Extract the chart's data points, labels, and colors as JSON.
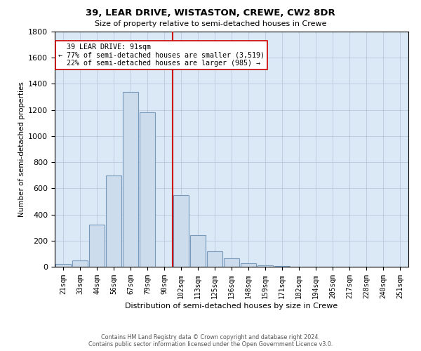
{
  "title": "39, LEAR DRIVE, WISTASTON, CREWE, CW2 8DR",
  "subtitle": "Size of property relative to semi-detached houses in Crewe",
  "xlabel": "Distribution of semi-detached houses by size in Crewe",
  "ylabel": "Number of semi-detached properties",
  "property_label": "39 LEAR DRIVE: 91sqm",
  "pct_smaller": 77,
  "count_smaller": 3519,
  "pct_larger": 22,
  "count_larger": 985,
  "bar_categories": [
    "21sqm",
    "33sqm",
    "44sqm",
    "56sqm",
    "67sqm",
    "79sqm",
    "90sqm",
    "102sqm",
    "113sqm",
    "125sqm",
    "136sqm",
    "148sqm",
    "159sqm",
    "171sqm",
    "182sqm",
    "194sqm",
    "205sqm",
    "217sqm",
    "228sqm",
    "240sqm",
    "251sqm"
  ],
  "bar_values": [
    20,
    50,
    320,
    700,
    1340,
    1180,
    0,
    550,
    240,
    120,
    65,
    25,
    10,
    5,
    2,
    0,
    0,
    0,
    0,
    0,
    0
  ],
  "bar_color": "#ccdcec",
  "bar_edge_color": "#7799bb",
  "vline_color": "#cc0000",
  "annotation_box_color": "#ffffff",
  "annotation_box_edge": "#cc0000",
  "ylim": [
    0,
    1800
  ],
  "yticks": [
    0,
    200,
    400,
    600,
    800,
    1000,
    1200,
    1400,
    1600,
    1800
  ],
  "grid_color": "#b0c4d8",
  "bg_color": "#dbe8f5",
  "footer_line1": "Contains HM Land Registry data © Crown copyright and database right 2024.",
  "footer_line2": "Contains public sector information licensed under the Open Government Licence v3.0."
}
